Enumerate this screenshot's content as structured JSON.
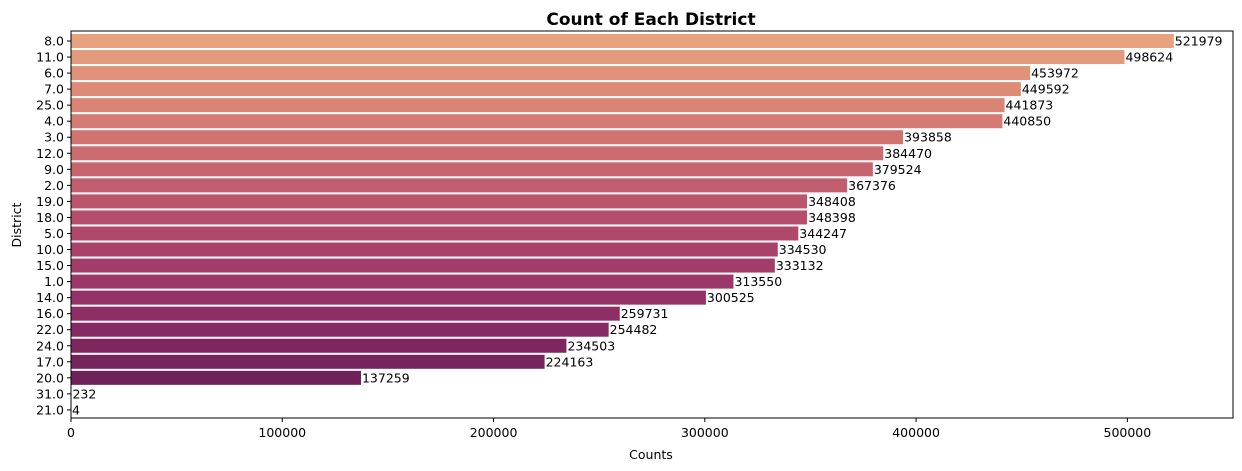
{
  "chart_data": {
    "type": "bar",
    "orientation": "horizontal",
    "title": "Count of Each District",
    "xlabel": "Counts",
    "ylabel": "District",
    "xlim": [
      0,
      550000
    ],
    "xticks": [
      0,
      100000,
      200000,
      300000,
      400000,
      500000
    ],
    "grid": false,
    "categories": [
      "8.0",
      "11.0",
      "6.0",
      "7.0",
      "25.0",
      "4.0",
      "3.0",
      "12.0",
      "9.0",
      "2.0",
      "19.0",
      "18.0",
      "5.0",
      "10.0",
      "15.0",
      "1.0",
      "14.0",
      "16.0",
      "22.0",
      "24.0",
      "17.0",
      "20.0",
      "31.0",
      "21.0"
    ],
    "values": [
      521979,
      498624,
      453972,
      449592,
      441873,
      440850,
      393858,
      384470,
      379524,
      367376,
      348408,
      348398,
      344247,
      334530,
      333132,
      313550,
      300525,
      259731,
      254482,
      234503,
      224163,
      137259,
      232,
      4
    ],
    "colors": [
      "#e8a27f",
      "#e49a7d",
      "#e1937a",
      "#dd8b77",
      "#d98475",
      "#d47c73",
      "#cf7471",
      "#cb6c70",
      "#c5646f",
      "#c05d6e",
      "#ba556d",
      "#b54e6c",
      "#af486b",
      "#a9426a",
      "#a23c69",
      "#9b3768",
      "#943266",
      "#8d2e64",
      "#852a62",
      "#7e275f",
      "#76245c",
      "#6e2259",
      "#662055",
      "#5e1e51"
    ]
  }
}
